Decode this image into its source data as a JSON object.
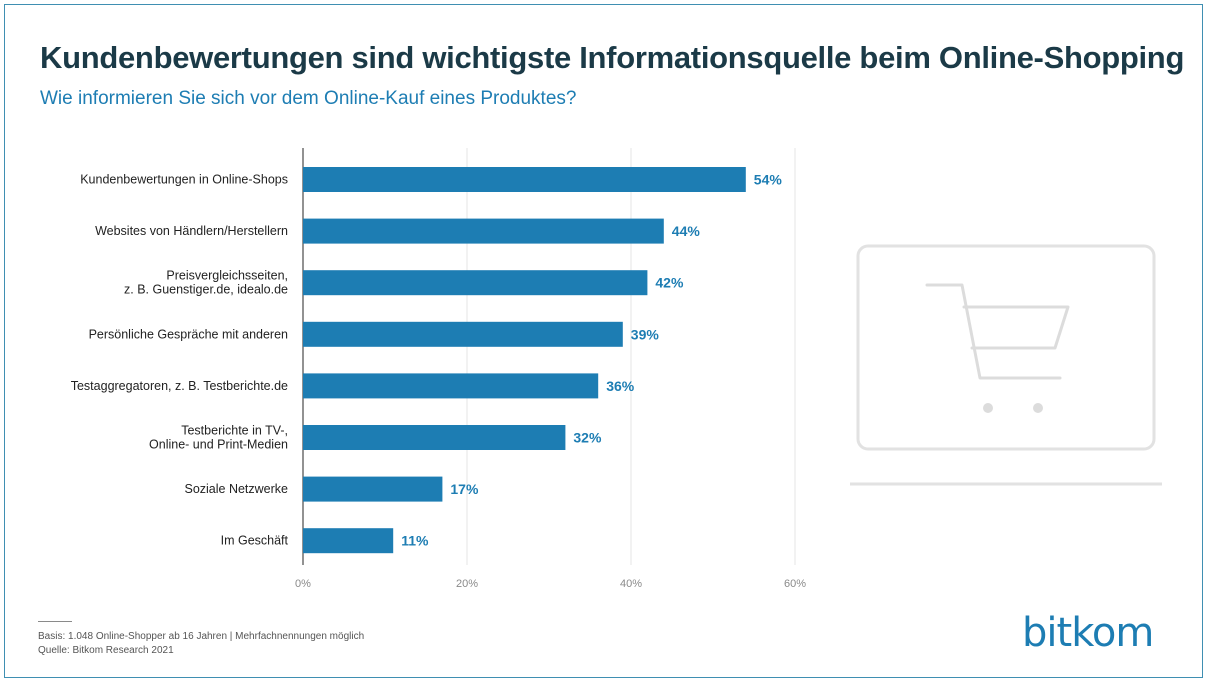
{
  "header": {
    "title": "Kundenbewertungen sind wichtigste Informationsquelle beim Online-Shopping",
    "subtitle": "Wie informieren Sie sich vor dem Online-Kauf eines Produktes?"
  },
  "chart_data": {
    "type": "bar",
    "orientation": "horizontal",
    "title": "Kundenbewertungen sind wichtigste Informationsquelle beim Online-Shopping",
    "subtitle": "Wie informieren Sie sich vor dem Online-Kauf eines Produktes?",
    "categories": [
      [
        "Kundenbewertungen in Online-Shops"
      ],
      [
        "Websites von Händlern/Herstellern"
      ],
      [
        "Preisvergleichsseiten,",
        "z. B. Guenstiger.de, idealo.de"
      ],
      [
        "Persönliche Gespräche mit anderen"
      ],
      [
        "Testaggregatoren, z. B. Testberichte.de"
      ],
      [
        "Testberichte in TV-,",
        "Online- und Print-Medien"
      ],
      [
        "Soziale Netzwerke"
      ],
      [
        "Im Geschäft"
      ]
    ],
    "values": [
      54,
      44,
      42,
      39,
      36,
      32,
      17,
      11
    ],
    "value_labels": [
      "54%",
      "44%",
      "42%",
      "39%",
      "36%",
      "32%",
      "17%",
      "11%"
    ],
    "xlim": [
      0,
      60
    ],
    "xticks": [
      0,
      20,
      40,
      60
    ],
    "xtick_labels": [
      "0%",
      "20%",
      "40%",
      "60%"
    ],
    "xlabel": "",
    "ylabel": "",
    "grid": true,
    "bar_color": "#1d7db3",
    "label_color": "#1d7db3"
  },
  "footer": {
    "basis": "Basis: 1.048 Online-Shopper ab 16 Jahren | Mehrfachnennungen möglich",
    "source": "Quelle: Bitkom Research 2021",
    "logo": "bitkom"
  },
  "illustration": {
    "icon": "shopping-cart-icon"
  }
}
